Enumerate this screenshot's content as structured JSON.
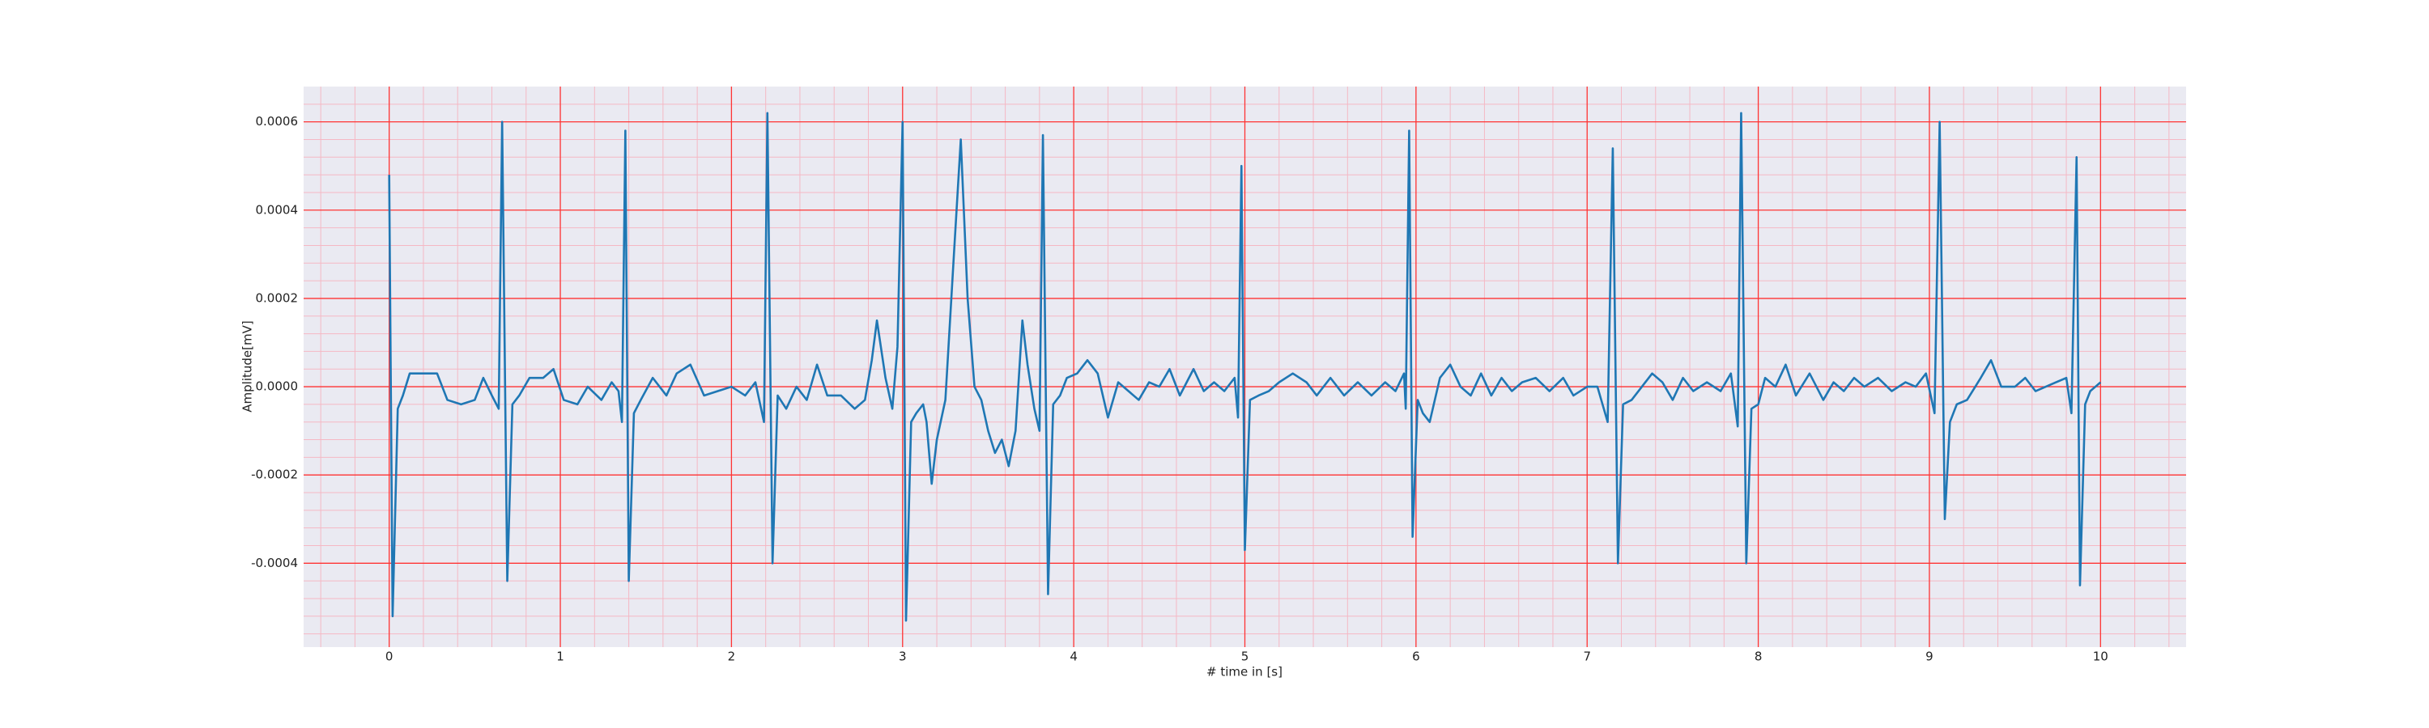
{
  "chart_data": {
    "type": "line",
    "xlabel": "# time in [s]",
    "ylabel": "Amplitude[mV]",
    "color": "#1f77b4",
    "grid": true,
    "major_grid_color": "#ff3333",
    "minor_grid_color": "#f5b8c4",
    "background": "#eaeaf2",
    "xlim": [
      -0.5,
      10.5
    ],
    "ylim": [
      -0.00059,
      0.00068
    ],
    "xticks": [
      0,
      1,
      2,
      3,
      4,
      5,
      6,
      7,
      8,
      9,
      10
    ],
    "yticks": [
      -0.0004,
      -0.0002,
      {
        "value": 0,
        "label": "0.0000"
      },
      0.0002,
      0.0004,
      0.0006
    ],
    "xminorticks": [
      -0.4,
      -0.2,
      0.2,
      0.4,
      0.6,
      0.8,
      1.2,
      1.4,
      1.6,
      1.8,
      2.2,
      2.4,
      2.6,
      2.8,
      3.2,
      3.4,
      3.6,
      3.8,
      4.2,
      4.4,
      4.6,
      4.8,
      5.2,
      5.4,
      5.6,
      5.8,
      6.2,
      6.4,
      6.6,
      6.8,
      7.2,
      7.4,
      7.6,
      7.8,
      8.2,
      8.4,
      8.6,
      8.8,
      9.2,
      9.4,
      9.6,
      9.8,
      10.2,
      10.4
    ],
    "yminorticks": [
      -0.00056,
      -0.00052,
      -0.00048,
      -0.00044,
      -0.00036,
      -0.00032,
      -0.00028,
      -0.00024,
      -0.00016,
      -0.00012,
      -8e-05,
      -4e-05,
      4e-05,
      8e-05,
      0.00012,
      0.00016,
      0.00024,
      0.00028,
      0.00032,
      0.00036,
      0.00044,
      0.00048,
      0.00052,
      0.00056,
      0.00064
    ],
    "x": [
      0,
      0.02,
      0.05,
      0.08,
      0.12,
      0.2,
      0.28,
      0.34,
      0.42,
      0.5,
      0.55,
      0.6,
      0.64,
      0.66,
      0.69,
      0.72,
      0.76,
      0.82,
      0.9,
      0.96,
      1.02,
      1.1,
      1.16,
      1.24,
      1.3,
      1.34,
      1.36,
      1.38,
      1.4,
      1.43,
      1.47,
      1.54,
      1.62,
      1.68,
      1.76,
      1.84,
      1.92,
      2,
      2.08,
      2.14,
      2.19,
      2.21,
      2.24,
      2.27,
      2.32,
      2.38,
      2.44,
      2.5,
      2.56,
      2.64,
      2.72,
      2.78,
      2.82,
      2.85,
      2.9,
      2.94,
      2.97,
      3,
      3.02,
      3.05,
      3.08,
      3.12,
      3.14,
      3.17,
      3.2,
      3.25,
      3.3,
      3.34,
      3.38,
      3.42,
      3.46,
      3.5,
      3.54,
      3.58,
      3.62,
      3.66,
      3.7,
      3.73,
      3.77,
      3.8,
      3.82,
      3.85,
      3.88,
      3.92,
      3.96,
      4.02,
      4.08,
      4.14,
      4.2,
      4.26,
      4.32,
      4.38,
      4.44,
      4.5,
      4.56,
      4.62,
      4.7,
      4.76,
      4.82,
      4.88,
      4.94,
      4.96,
      4.98,
      5,
      5.03,
      5.08,
      5.14,
      5.2,
      5.28,
      5.36,
      5.42,
      5.5,
      5.58,
      5.66,
      5.74,
      5.82,
      5.88,
      5.93,
      5.94,
      5.96,
      5.98,
      6.01,
      6.04,
      6.08,
      6.14,
      6.2,
      6.26,
      6.32,
      6.38,
      6.44,
      6.5,
      6.56,
      6.62,
      6.7,
      6.78,
      6.86,
      6.92,
      7,
      7.06,
      7.12,
      7.15,
      7.18,
      7.21,
      7.26,
      7.32,
      7.38,
      7.44,
      7.5,
      7.56,
      7.62,
      7.7,
      7.78,
      7.84,
      7.88,
      7.9,
      7.93,
      7.96,
      8,
      8.04,
      8.1,
      8.16,
      8.22,
      8.3,
      8.38,
      8.44,
      8.5,
      8.56,
      8.62,
      8.7,
      8.78,
      8.86,
      8.92,
      8.98,
      9.03,
      9.06,
      9.09,
      9.12,
      9.16,
      9.22,
      9.3,
      9.36,
      9.42,
      9.5,
      9.56,
      9.62,
      9.68,
      9.74,
      9.8,
      9.83,
      9.86,
      9.88,
      9.91,
      9.94,
      9.97,
      10
    ],
    "values": [
      0.00048,
      -0.00052,
      -5e-05,
      -2e-05,
      3e-05,
      3e-05,
      3e-05,
      -3e-05,
      -4e-05,
      -3e-05,
      2e-05,
      -2e-05,
      -5e-05,
      0.0006,
      -0.00044,
      -4e-05,
      -2e-05,
      2e-05,
      2e-05,
      4e-05,
      -3e-05,
      -4e-05,
      0,
      -3e-05,
      1e-05,
      -1e-05,
      -8e-05,
      0.00058,
      -0.00044,
      -6e-05,
      -3e-05,
      2e-05,
      -2e-05,
      3e-05,
      5e-05,
      -2e-05,
      -1e-05,
      0,
      -2e-05,
      1e-05,
      -8e-05,
      0.00062,
      -0.0004,
      -2e-05,
      -5e-05,
      0,
      -3e-05,
      5e-05,
      -2e-05,
      -2e-05,
      -5e-05,
      -3e-05,
      6e-05,
      0.00015,
      2e-05,
      -5e-05,
      9e-05,
      0.0006,
      -0.00053,
      -8e-05,
      -6e-05,
      -4e-05,
      -8e-05,
      -0.00022,
      -0.00012,
      -3e-05,
      0.0003,
      0.00056,
      0.0002,
      0,
      -3e-05,
      -0.0001,
      -0.00015,
      -0.00012,
      -0.00018,
      -0.0001,
      0.00015,
      5e-05,
      -5e-05,
      -0.0001,
      0.00057,
      -0.00047,
      -4e-05,
      -2e-05,
      2e-05,
      3e-05,
      6e-05,
      3e-05,
      -7e-05,
      1e-05,
      -1e-05,
      -3e-05,
      1e-05,
      0,
      4e-05,
      -2e-05,
      4e-05,
      -1e-05,
      1e-05,
      -1e-05,
      2e-05,
      -7e-05,
      0.0005,
      -0.00037,
      -3e-05,
      -2e-05,
      -1e-05,
      1e-05,
      3e-05,
      1e-05,
      -2e-05,
      2e-05,
      -2e-05,
      1e-05,
      -2e-05,
      1e-05,
      -1e-05,
      3e-05,
      -5e-05,
      0.00058,
      -0.00034,
      -3e-05,
      -6e-05,
      -8e-05,
      2e-05,
      5e-05,
      0,
      -2e-05,
      3e-05,
      -2e-05,
      2e-05,
      -1e-05,
      1e-05,
      2e-05,
      -1e-05,
      2e-05,
      -2e-05,
      0,
      0,
      -8e-05,
      0.00054,
      -0.0004,
      -4e-05,
      -3e-05,
      0,
      3e-05,
      1e-05,
      -3e-05,
      2e-05,
      -1e-05,
      1e-05,
      -1e-05,
      3e-05,
      -9e-05,
      0.00062,
      -0.0004,
      -5e-05,
      -4e-05,
      2e-05,
      0,
      5e-05,
      -2e-05,
      3e-05,
      -3e-05,
      1e-05,
      -1e-05,
      2e-05,
      0,
      2e-05,
      -1e-05,
      1e-05,
      0,
      3e-05,
      -6e-05,
      0.0006,
      -0.0003,
      -8e-05,
      -4e-05,
      -3e-05,
      2e-05,
      6e-05,
      0,
      0,
      2e-05,
      -1e-05,
      0,
      1e-05,
      2e-05,
      -6e-05,
      0.00052,
      -0.00045,
      -4e-05,
      -1e-05,
      0,
      1e-05
    ]
  }
}
